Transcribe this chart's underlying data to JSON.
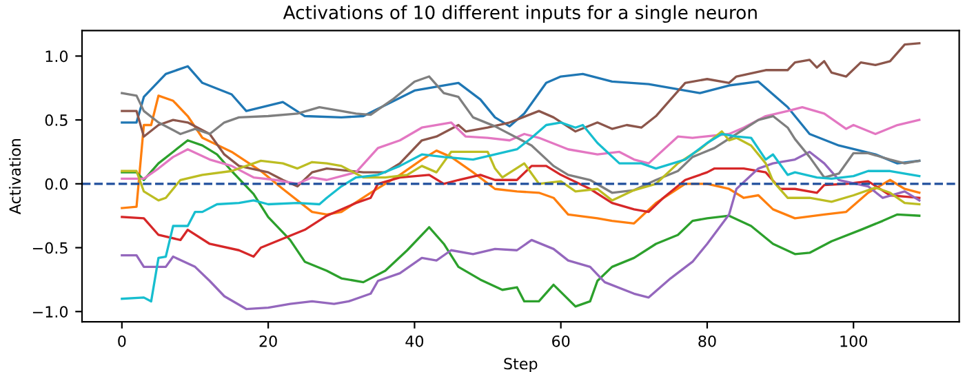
{
  "chart_data": {
    "type": "line",
    "title": "Activations of 10 different inputs for a single neuron",
    "xlabel": "Step",
    "ylabel": "Activation",
    "xlim": [
      -5.45,
      114.45
    ],
    "ylim": [
      -1.08,
      1.2
    ],
    "xticks": [
      0,
      20,
      40,
      60,
      80,
      100
    ],
    "yticks": [
      {
        "value": -1.0,
        "label": "−1.0"
      },
      {
        "value": -0.5,
        "label": "−0.5"
      },
      {
        "value": 0.0,
        "label": "0.0"
      },
      {
        "value": 0.5,
        "label": "0.5"
      },
      {
        "value": 1.0,
        "label": "1.0"
      }
    ],
    "grid": false,
    "marker": "none",
    "line_style": "solid",
    "ref_lines": [
      {
        "axis": "y",
        "value": 0,
        "label": null,
        "color": "#1f4e9c",
        "line_style": "dashed"
      }
    ],
    "series": [
      {
        "color": "#1f77b4",
        "x": [
          0,
          2,
          3,
          6,
          9,
          11,
          15,
          17,
          22,
          25,
          30,
          33,
          40,
          46,
          49,
          51,
          53,
          55,
          58,
          60,
          63,
          67,
          72,
          79,
          83,
          87,
          91,
          94,
          98,
          103,
          106,
          109
        ],
        "values": [
          0.48,
          0.48,
          0.68,
          0.86,
          0.92,
          0.79,
          0.7,
          0.57,
          0.64,
          0.53,
          0.52,
          0.53,
          0.73,
          0.79,
          0.66,
          0.52,
          0.45,
          0.55,
          0.79,
          0.84,
          0.86,
          0.8,
          0.78,
          0.71,
          0.77,
          0.8,
          0.6,
          0.39,
          0.3,
          0.23,
          0.16,
          0.18
        ]
      },
      {
        "color": "#ff7f0e",
        "x": [
          0,
          2,
          3,
          4,
          5,
          7,
          9,
          11,
          15,
          19,
          22,
          26,
          28,
          30,
          34,
          38,
          41,
          43,
          45,
          48,
          51,
          54,
          57,
          59,
          61,
          65,
          67,
          70,
          73,
          77,
          80,
          83,
          85,
          87,
          89,
          92,
          96,
          99,
          102,
          105,
          107,
          109
        ],
        "values": [
          -0.19,
          -0.18,
          0.46,
          0.46,
          0.69,
          0.65,
          0.53,
          0.36,
          0.25,
          0.1,
          -0.04,
          -0.22,
          -0.24,
          -0.22,
          -0.07,
          0.07,
          0.19,
          0.26,
          0.21,
          0.09,
          -0.04,
          -0.06,
          -0.07,
          -0.11,
          -0.24,
          -0.27,
          -0.29,
          -0.31,
          -0.15,
          0.0,
          0.0,
          -0.04,
          -0.11,
          -0.09,
          -0.2,
          -0.27,
          -0.24,
          -0.22,
          -0.07,
          0.03,
          -0.04,
          -0.07
        ]
      },
      {
        "color": "#2ca02c",
        "x": [
          0,
          2,
          3,
          5,
          7,
          9,
          11,
          13,
          15,
          18,
          20,
          23,
          25,
          28,
          30,
          33,
          36,
          39,
          42,
          44,
          46,
          49,
          52,
          54,
          55,
          57,
          59,
          62,
          64,
          65,
          67,
          70,
          73,
          76,
          78,
          80,
          83,
          86,
          89,
          92,
          94,
          97,
          101,
          104,
          106,
          109
        ],
        "values": [
          0.09,
          0.09,
          0.03,
          0.16,
          0.25,
          0.34,
          0.3,
          0.23,
          0.1,
          -0.08,
          -0.26,
          -0.44,
          -0.61,
          -0.68,
          -0.74,
          -0.77,
          -0.68,
          -0.52,
          -0.34,
          -0.47,
          -0.65,
          -0.75,
          -0.83,
          -0.81,
          -0.92,
          -0.92,
          -0.79,
          -0.96,
          -0.92,
          -0.76,
          -0.65,
          -0.58,
          -0.47,
          -0.4,
          -0.29,
          -0.27,
          -0.25,
          -0.33,
          -0.47,
          -0.55,
          -0.54,
          -0.45,
          -0.36,
          -0.29,
          -0.24,
          -0.25
        ]
      },
      {
        "color": "#d62728",
        "x": [
          0,
          3,
          5,
          8,
          9,
          12,
          16,
          18,
          19,
          22,
          25,
          28,
          32,
          34,
          35,
          38,
          42,
          44,
          46,
          49,
          51,
          54,
          56,
          58,
          60,
          64,
          67,
          70,
          72,
          74,
          77,
          80,
          81,
          85,
          88,
          90,
          92,
          95,
          96,
          99,
          102,
          105,
          107,
          109
        ],
        "values": [
          -0.26,
          -0.27,
          -0.4,
          -0.44,
          -0.36,
          -0.47,
          -0.52,
          -0.57,
          -0.5,
          -0.43,
          -0.36,
          -0.25,
          -0.15,
          -0.11,
          0.0,
          0.05,
          0.07,
          0.0,
          0.03,
          0.07,
          0.03,
          0.03,
          0.14,
          0.14,
          0.07,
          -0.04,
          -0.15,
          -0.2,
          -0.22,
          -0.11,
          0.03,
          0.09,
          0.12,
          0.12,
          0.09,
          -0.04,
          -0.04,
          -0.07,
          -0.01,
          0.0,
          0.02,
          -0.09,
          -0.1,
          -0.11
        ]
      },
      {
        "color": "#9467bd",
        "x": [
          0,
          2,
          3,
          6,
          7,
          10,
          12,
          14,
          17,
          20,
          23,
          26,
          29,
          31,
          34,
          35,
          38,
          41,
          43,
          45,
          48,
          51,
          54,
          56,
          59,
          61,
          64,
          66,
          70,
          72,
          73,
          75,
          78,
          80,
          83,
          84,
          87,
          89,
          92,
          94,
          96,
          98,
          102,
          104,
          107,
          109
        ],
        "values": [
          -0.56,
          -0.56,
          -0.65,
          -0.65,
          -0.57,
          -0.65,
          -0.76,
          -0.88,
          -0.98,
          -0.97,
          -0.94,
          -0.92,
          -0.94,
          -0.92,
          -0.86,
          -0.76,
          -0.7,
          -0.58,
          -0.6,
          -0.52,
          -0.55,
          -0.51,
          -0.52,
          -0.44,
          -0.51,
          -0.6,
          -0.65,
          -0.77,
          -0.86,
          -0.89,
          -0.84,
          -0.74,
          -0.61,
          -0.47,
          -0.24,
          -0.04,
          0.12,
          0.16,
          0.19,
          0.25,
          0.16,
          0.03,
          -0.02,
          -0.11,
          -0.06,
          -0.13
        ]
      },
      {
        "color": "#8c564b",
        "x": [
          0,
          2,
          3,
          5,
          7,
          9,
          12,
          14,
          16,
          20,
          22,
          24,
          26,
          28,
          33,
          36,
          38,
          41,
          43,
          46,
          47,
          50,
          53,
          57,
          59,
          62,
          65,
          67,
          69,
          71,
          73,
          75,
          77,
          80,
          83,
          84,
          88,
          91,
          92,
          94,
          95,
          96,
          97,
          99,
          101,
          103,
          105,
          107,
          109
        ],
        "values": [
          0.57,
          0.57,
          0.37,
          0.46,
          0.5,
          0.48,
          0.39,
          0.23,
          0.14,
          0.09,
          0.03,
          -0.02,
          0.09,
          0.12,
          0.09,
          0.09,
          0.16,
          0.34,
          0.37,
          0.46,
          0.41,
          0.44,
          0.48,
          0.57,
          0.52,
          0.41,
          0.48,
          0.43,
          0.46,
          0.44,
          0.53,
          0.66,
          0.79,
          0.82,
          0.79,
          0.84,
          0.89,
          0.89,
          0.95,
          0.97,
          0.91,
          0.96,
          0.87,
          0.84,
          0.95,
          0.93,
          0.96,
          1.09,
          1.1
        ]
      },
      {
        "color": "#e377c2",
        "x": [
          0,
          3,
          5,
          7,
          9,
          12,
          15,
          18,
          21,
          24,
          26,
          28,
          32,
          35,
          38,
          41,
          45,
          47,
          50,
          53,
          55,
          57,
          61,
          65,
          68,
          70,
          72,
          76,
          78,
          83,
          85,
          88,
          91,
          93,
          96,
          99,
          100,
          103,
          106,
          109
        ],
        "values": [
          0.04,
          0.04,
          0.12,
          0.21,
          0.27,
          0.19,
          0.14,
          0.05,
          0.03,
          0.0,
          0.05,
          0.03,
          0.09,
          0.28,
          0.34,
          0.44,
          0.48,
          0.37,
          0.36,
          0.34,
          0.39,
          0.36,
          0.27,
          0.23,
          0.25,
          0.19,
          0.16,
          0.37,
          0.36,
          0.39,
          0.44,
          0.53,
          0.57,
          0.6,
          0.55,
          0.43,
          0.46,
          0.39,
          0.46,
          0.5
        ]
      },
      {
        "color": "#7f7f7f",
        "x": [
          0,
          2,
          3,
          5,
          8,
          10,
          12,
          14,
          16,
          20,
          24,
          27,
          30,
          32,
          34,
          37,
          40,
          42,
          44,
          46,
          48,
          51,
          54,
          56,
          59,
          61,
          64,
          67,
          70,
          73,
          76,
          78,
          81,
          84,
          87,
          89,
          91,
          92,
          94,
          96,
          98,
          100,
          102,
          105,
          107,
          109
        ],
        "values": [
          0.71,
          0.69,
          0.57,
          0.48,
          0.39,
          0.43,
          0.39,
          0.48,
          0.52,
          0.53,
          0.55,
          0.6,
          0.57,
          0.55,
          0.54,
          0.66,
          0.8,
          0.84,
          0.71,
          0.68,
          0.52,
          0.45,
          0.36,
          0.3,
          0.14,
          0.07,
          0.03,
          -0.07,
          -0.05,
          0.03,
          0.1,
          0.21,
          0.28,
          0.39,
          0.5,
          0.53,
          0.44,
          0.35,
          0.21,
          0.05,
          0.08,
          0.24,
          0.24,
          0.19,
          0.16,
          0.18
        ]
      },
      {
        "color": "#bcbd22",
        "x": [
          0,
          2,
          3,
          5,
          6,
          8,
          11,
          15,
          19,
          22,
          24,
          26,
          28,
          30,
          33,
          36,
          39,
          41,
          43,
          45,
          50,
          51,
          52,
          55,
          57,
          60,
          62,
          65,
          67,
          70,
          73,
          76,
          79,
          82,
          83,
          84,
          86,
          88,
          89,
          91,
          94,
          97,
          100,
          103,
          105,
          107,
          109
        ],
        "values": [
          0.1,
          0.1,
          -0.06,
          -0.13,
          -0.11,
          0.03,
          0.07,
          0.1,
          0.18,
          0.16,
          0.12,
          0.17,
          0.16,
          0.14,
          0.05,
          0.05,
          0.07,
          0.14,
          0.09,
          0.25,
          0.25,
          0.12,
          0.05,
          0.16,
          0.0,
          0.02,
          -0.06,
          -0.04,
          -0.13,
          -0.05,
          0.0,
          0.16,
          0.27,
          0.41,
          0.34,
          0.36,
          0.3,
          0.16,
          0.02,
          -0.11,
          -0.11,
          -0.14,
          -0.09,
          -0.03,
          -0.07,
          -0.15,
          -0.16
        ]
      },
      {
        "color": "#17becf",
        "x": [
          0,
          3,
          4,
          5,
          6,
          7,
          9,
          10,
          11,
          13,
          16,
          18,
          20,
          24,
          27,
          28,
          30,
          32,
          35,
          38,
          41,
          44,
          48,
          51,
          54,
          56,
          58,
          60,
          62,
          63,
          65,
          68,
          71,
          73,
          77,
          80,
          82,
          84,
          86,
          88,
          89,
          91,
          92,
          95,
          97,
          100,
          102,
          105,
          109
        ],
        "values": [
          -0.9,
          -0.89,
          -0.92,
          -0.58,
          -0.57,
          -0.33,
          -0.33,
          -0.22,
          -0.22,
          -0.16,
          -0.15,
          -0.13,
          -0.16,
          -0.15,
          -0.16,
          -0.11,
          -0.02,
          0.05,
          0.07,
          0.14,
          0.23,
          0.21,
          0.19,
          0.23,
          0.27,
          0.36,
          0.46,
          0.48,
          0.44,
          0.46,
          0.32,
          0.16,
          0.16,
          0.12,
          0.19,
          0.32,
          0.39,
          0.37,
          0.36,
          0.19,
          0.23,
          0.07,
          0.09,
          0.05,
          0.04,
          0.06,
          0.1,
          0.1,
          0.06
        ]
      }
    ]
  }
}
